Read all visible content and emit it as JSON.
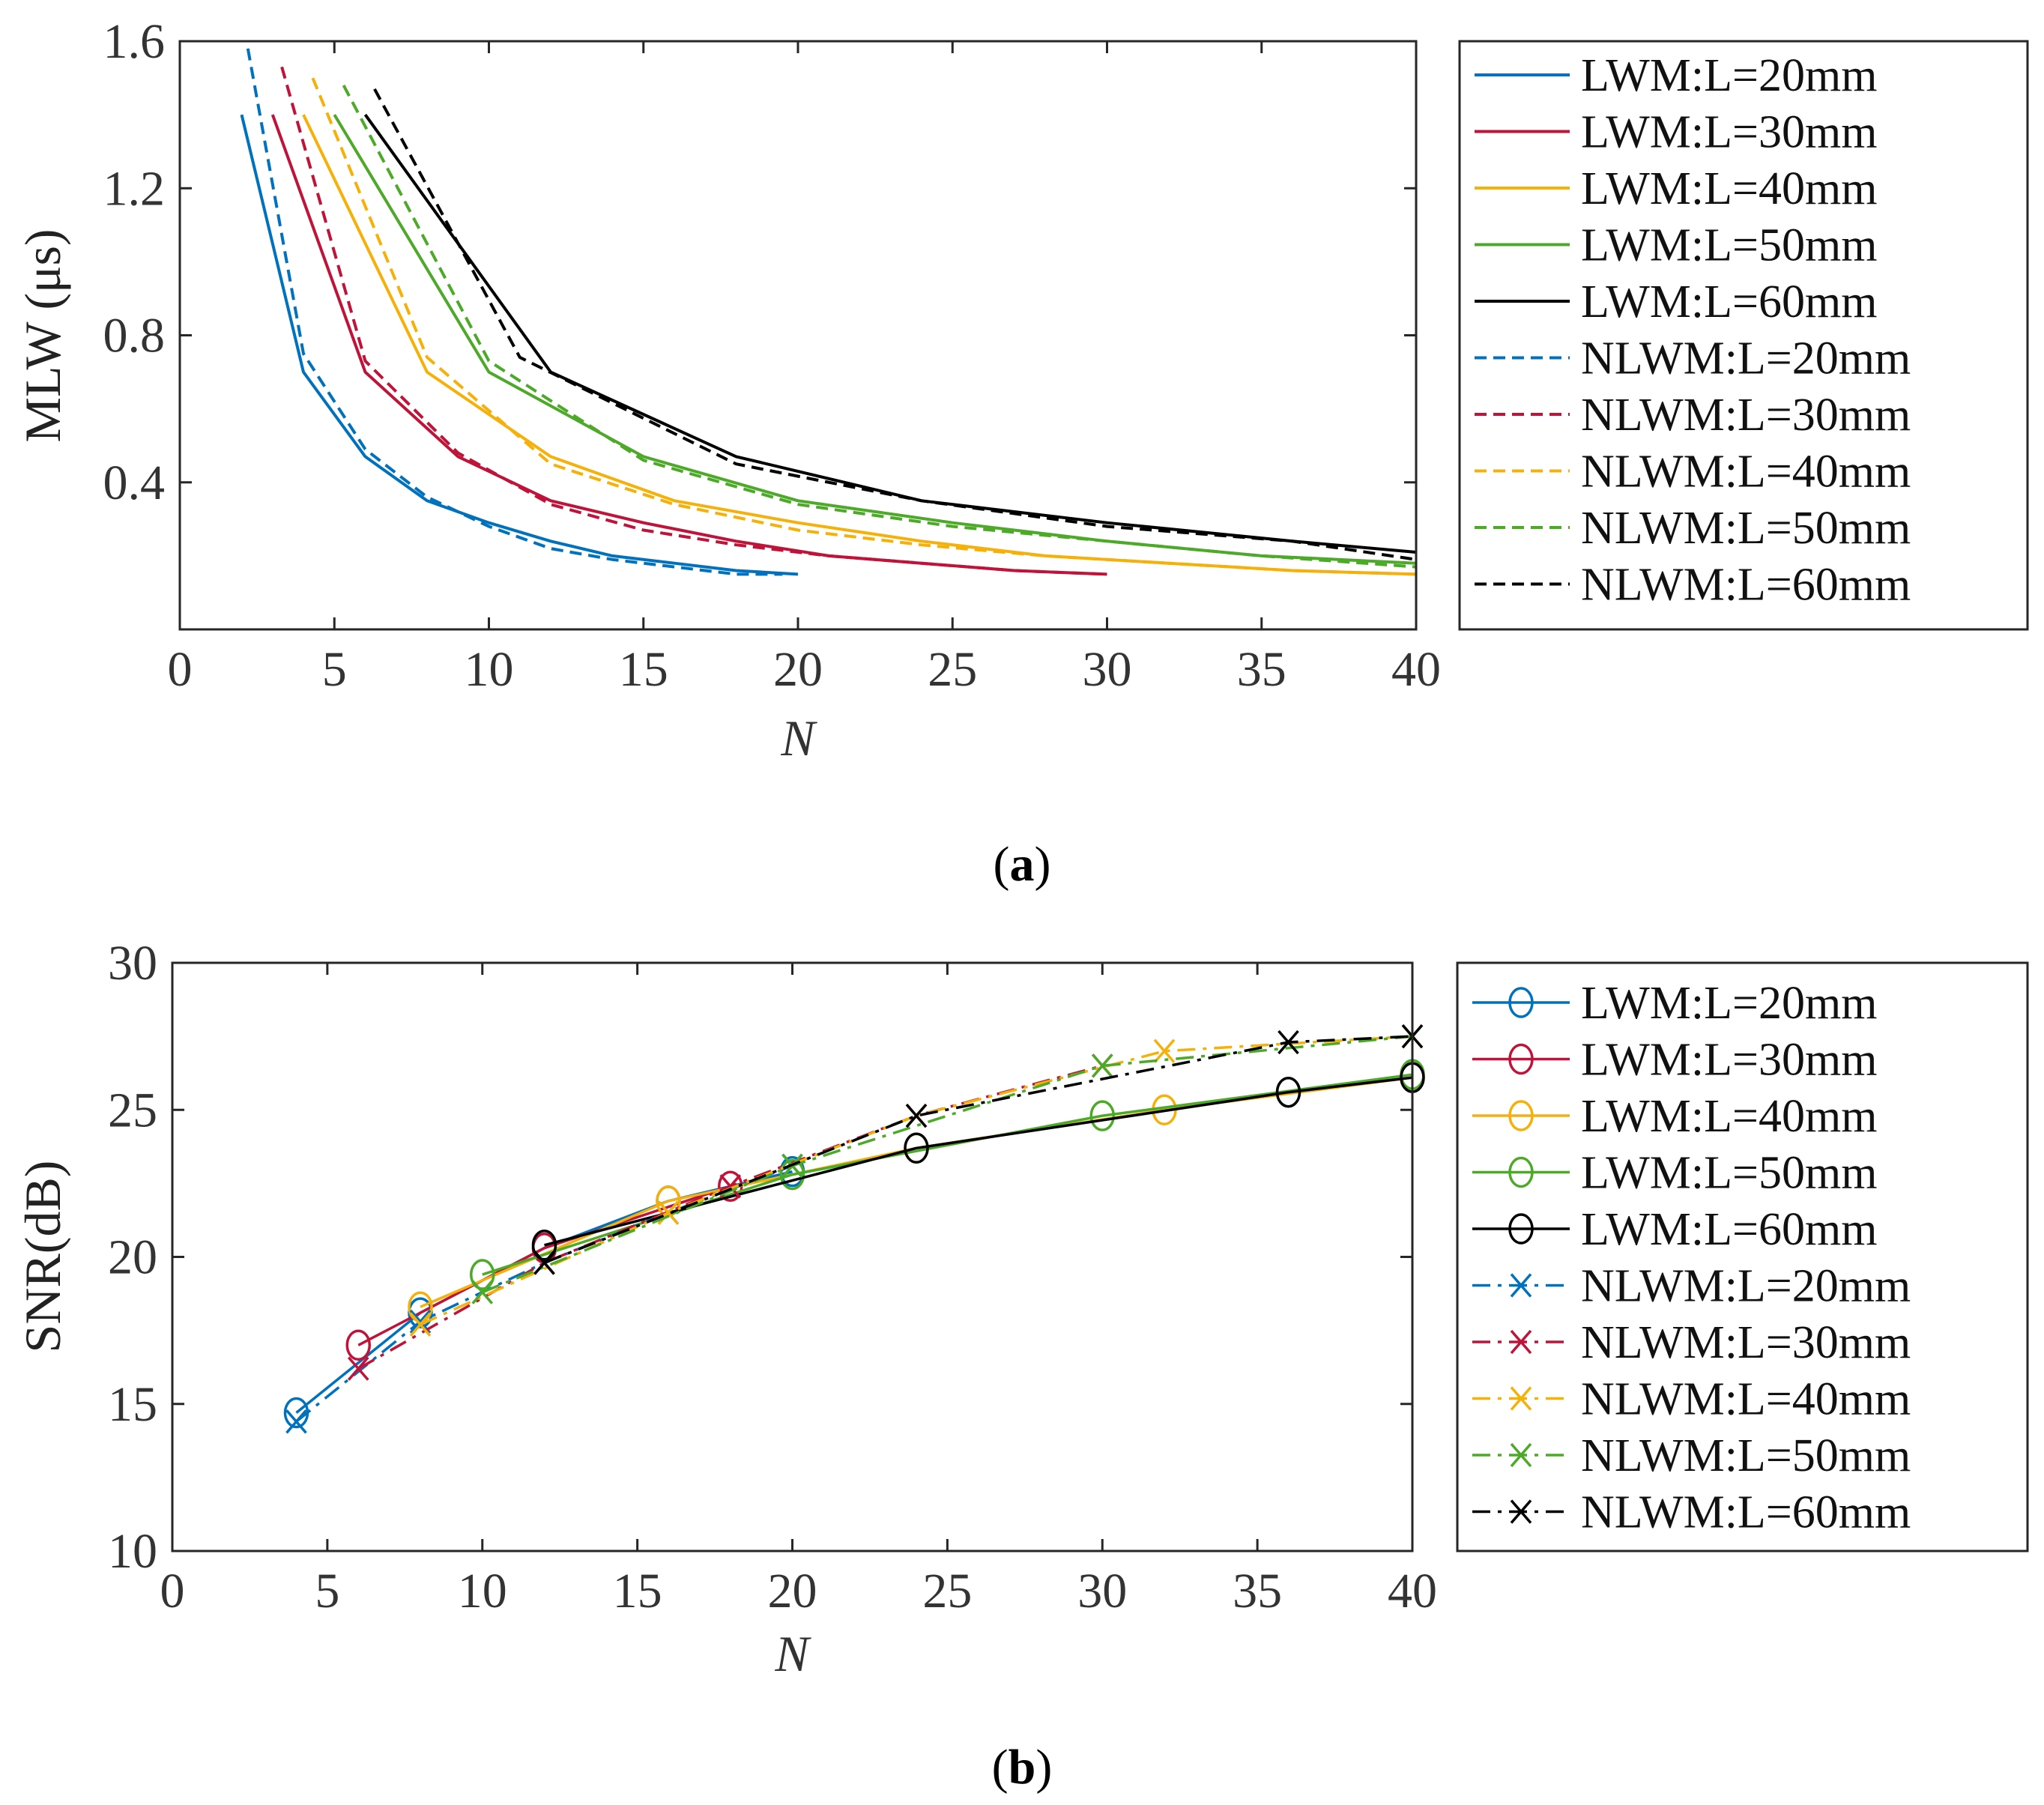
{
  "colors": {
    "L20": "#0072BD",
    "L30": "#C0133A",
    "L40": "#F5B10A",
    "L50": "#4DAA29",
    "L60": "#000000"
  },
  "chart_data": [
    {
      "type": "line",
      "panel": "a",
      "caption_letter": "a",
      "xlabel": "N",
      "ylabel": "MLW (μs)",
      "xlim": [
        0,
        40
      ],
      "ylim": [
        0,
        1.6
      ],
      "xticks": [
        "0",
        "5",
        "10",
        "15",
        "20",
        "25",
        "30",
        "35",
        "40"
      ],
      "xtick_values": [
        0,
        5,
        10,
        15,
        20,
        25,
        30,
        35,
        40
      ],
      "yticks": [
        "0.4",
        "0.8",
        "1.2",
        "1.6"
      ],
      "ytick_values": [
        0.4,
        0.8,
        1.2,
        1.6
      ],
      "legend_position": "outside-right",
      "series": [
        {
          "name": "LWM:L=20mm",
          "color_key": "L20",
          "style": "solid",
          "x": [
            2,
            4,
            6,
            8,
            10,
            12,
            14,
            16,
            18,
            20
          ],
          "y": [
            1.4,
            0.7,
            0.47,
            0.35,
            0.29,
            0.24,
            0.2,
            0.18,
            0.16,
            0.15
          ]
        },
        {
          "name": "LWM:L=30mm",
          "color_key": "L30",
          "style": "solid",
          "x": [
            3,
            6,
            9,
            12,
            15,
            18,
            21,
            24,
            27,
            30
          ],
          "y": [
            1.4,
            0.7,
            0.47,
            0.35,
            0.29,
            0.24,
            0.2,
            0.18,
            0.16,
            0.15
          ]
        },
        {
          "name": "LWM:L=40mm",
          "color_key": "L40",
          "style": "solid",
          "x": [
            4,
            8,
            12,
            16,
            20,
            24,
            28,
            32,
            36,
            40
          ],
          "y": [
            1.4,
            0.7,
            0.47,
            0.35,
            0.29,
            0.24,
            0.2,
            0.18,
            0.16,
            0.15
          ]
        },
        {
          "name": "LWM:L=50mm",
          "color_key": "L50",
          "style": "solid",
          "x": [
            5,
            10,
            15,
            20,
            25,
            30,
            35,
            40
          ],
          "y": [
            1.4,
            0.7,
            0.47,
            0.35,
            0.29,
            0.24,
            0.2,
            0.18
          ]
        },
        {
          "name": "LWM:L=60mm",
          "color_key": "L60",
          "style": "solid",
          "x": [
            6,
            12,
            18,
            24,
            30,
            36,
            40
          ],
          "y": [
            1.4,
            0.7,
            0.47,
            0.35,
            0.29,
            0.24,
            0.21
          ]
        },
        {
          "name": "NLWM:L=20mm",
          "color_key": "L20",
          "style": "dashed",
          "x": [
            2.2,
            4,
            6,
            8,
            10,
            12,
            14,
            16,
            18,
            19.5
          ],
          "y": [
            1.58,
            0.75,
            0.49,
            0.36,
            0.28,
            0.22,
            0.19,
            0.17,
            0.15,
            0.15
          ]
        },
        {
          "name": "NLWM:L=30mm",
          "color_key": "L30",
          "style": "dashed",
          "x": [
            3.3,
            6,
            9,
            12,
            15,
            18,
            21,
            24,
            27,
            30
          ],
          "y": [
            1.53,
            0.73,
            0.48,
            0.34,
            0.27,
            0.23,
            0.2,
            0.18,
            0.16,
            0.15
          ]
        },
        {
          "name": "NLWM:L=40mm",
          "color_key": "L40",
          "style": "dashed",
          "x": [
            4.3,
            8,
            12,
            16,
            20,
            24,
            28,
            32,
            36,
            40
          ],
          "y": [
            1.5,
            0.74,
            0.45,
            0.34,
            0.27,
            0.23,
            0.2,
            0.18,
            0.16,
            0.15
          ]
        },
        {
          "name": "NLWM:L=50mm",
          "color_key": "L50",
          "style": "dashed",
          "x": [
            5.3,
            10,
            15,
            20,
            25,
            30,
            35,
            40
          ],
          "y": [
            1.48,
            0.73,
            0.46,
            0.34,
            0.28,
            0.24,
            0.2,
            0.17
          ]
        },
        {
          "name": "NLWM:L=60mm",
          "color_key": "L60",
          "style": "dashed",
          "x": [
            6.3,
            11,
            18,
            24,
            30,
            36,
            40
          ],
          "y": [
            1.47,
            0.74,
            0.45,
            0.35,
            0.28,
            0.24,
            0.19
          ]
        }
      ]
    },
    {
      "type": "line",
      "panel": "b",
      "caption_letter": "b",
      "xlabel": "N",
      "ylabel": "SNR(dB)",
      "xlim": [
        0,
        40
      ],
      "ylim": [
        10,
        30
      ],
      "xticks": [
        "0",
        "5",
        "10",
        "15",
        "20",
        "25",
        "30",
        "35",
        "40"
      ],
      "xtick_values": [
        0,
        5,
        10,
        15,
        20,
        25,
        30,
        35,
        40
      ],
      "yticks": [
        "10",
        "15",
        "20",
        "25",
        "30"
      ],
      "ytick_values": [
        10,
        15,
        20,
        25,
        30
      ],
      "legend_position": "outside-right",
      "series": [
        {
          "name": "LWM:L=20mm",
          "color_key": "L20",
          "style": "solid",
          "marker": "o",
          "x": [
            4,
            8,
            12,
            16,
            20
          ],
          "y": [
            14.7,
            18.1,
            20.3,
            21.9,
            22.9
          ]
        },
        {
          "name": "LWM:L=30mm",
          "color_key": "L30",
          "style": "solid",
          "marker": "o",
          "x": [
            6,
            12,
            18
          ],
          "y": [
            17.0,
            20.3,
            22.4
          ]
        },
        {
          "name": "LWM:L=40mm",
          "color_key": "L40",
          "style": "solid",
          "marker": "o",
          "x": [
            8,
            16,
            24,
            32,
            40
          ],
          "y": [
            18.3,
            21.9,
            23.7,
            25.0,
            26.1
          ]
        },
        {
          "name": "LWM:L=50mm",
          "color_key": "L50",
          "style": "solid",
          "marker": "o",
          "x": [
            10,
            20,
            30,
            40
          ],
          "y": [
            19.4,
            22.8,
            24.8,
            26.2
          ]
        },
        {
          "name": "LWM:L=60mm",
          "color_key": "L60",
          "style": "solid",
          "marker": "o",
          "x": [
            12,
            24,
            36,
            40
          ],
          "y": [
            20.4,
            23.7,
            25.6,
            26.1
          ]
        },
        {
          "name": "NLWM:L=20mm",
          "color_key": "L20",
          "style": "dashdot",
          "marker": "x",
          "x": [
            4,
            8,
            12,
            16,
            20
          ],
          "y": [
            14.4,
            17.8,
            19.8,
            21.5,
            23.1
          ]
        },
        {
          "name": "NLWM:L=30mm",
          "color_key": "L30",
          "style": "dashdot",
          "marker": "x",
          "x": [
            6,
            12,
            18,
            24,
            30
          ],
          "y": [
            16.2,
            19.8,
            22.4,
            24.8,
            26.5
          ]
        },
        {
          "name": "NLWM:L=40mm",
          "color_key": "L40",
          "style": "dashdot",
          "marker": "x",
          "x": [
            8,
            16,
            24,
            32,
            40
          ],
          "y": [
            17.7,
            21.5,
            24.8,
            27.0,
            27.5
          ]
        },
        {
          "name": "NLWM:L=50mm",
          "color_key": "L50",
          "style": "dashdot",
          "marker": "x",
          "x": [
            10,
            20,
            30,
            40
          ],
          "y": [
            18.8,
            23.1,
            26.5,
            27.5
          ]
        },
        {
          "name": "NLWM:L=60mm",
          "color_key": "L60",
          "style": "dashdot",
          "marker": "x",
          "x": [
            12,
            24,
            36,
            40
          ],
          "y": [
            19.8,
            24.8,
            27.3,
            27.5
          ]
        }
      ]
    }
  ]
}
